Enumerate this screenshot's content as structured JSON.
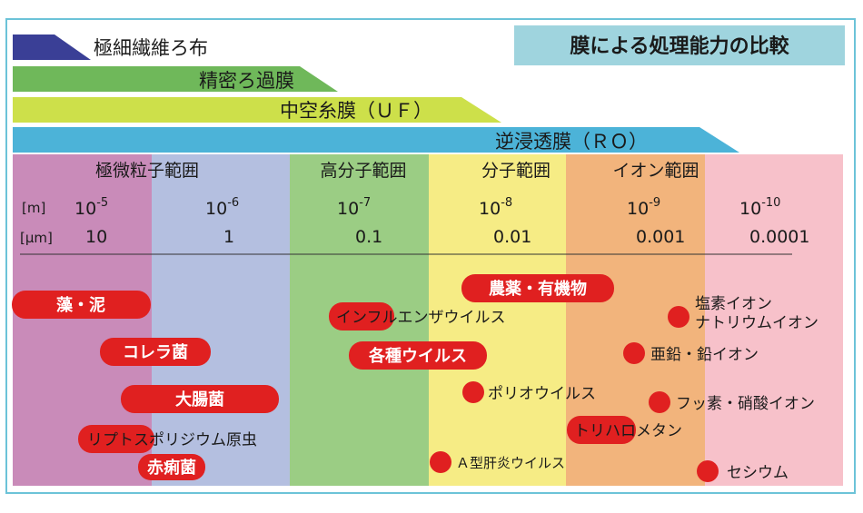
{
  "title": "膜による処理能力の比較",
  "colors": {
    "frame": "#6cc3d8",
    "title_bg": "#9fd4de",
    "marker": "#e02020"
  },
  "membranes": [
    {
      "label": "極細繊維ろ布",
      "color": "#3a3f96"
    },
    {
      "label": "精密ろ過膜",
      "color": "#6fb85a"
    },
    {
      "label": "中空糸膜（ＵＦ）",
      "color": "#cde04a"
    },
    {
      "label": "逆浸透膜（ＲＯ）",
      "color": "#4cb3d8"
    }
  ],
  "ranges": [
    {
      "label": "極微粒子範囲"
    },
    {
      "label": "高分子範囲"
    },
    {
      "label": "分子範囲"
    },
    {
      "label": "イオン範囲"
    }
  ],
  "columns": [
    {
      "color": "#c98bb9"
    },
    {
      "color": "#b4bfe0"
    },
    {
      "color": "#9bcd84"
    },
    {
      "color": "#f6ec85"
    },
    {
      "color": "#f2b47c"
    },
    {
      "color": "#f7c1ca"
    }
  ],
  "units": {
    "m": "[m]",
    "um": "[μm]"
  },
  "scale": [
    {
      "base": "10",
      "exp": "-5",
      "um": "10"
    },
    {
      "base": "10",
      "exp": "-6",
      "um": "1"
    },
    {
      "base": "10",
      "exp": "-7",
      "um": "0.1"
    },
    {
      "base": "10",
      "exp": "-8",
      "um": "0.01"
    },
    {
      "base": "10",
      "exp": "-9",
      "um": "0.001"
    },
    {
      "base": "10",
      "exp": "-10",
      "um": "0.0001"
    }
  ],
  "pill_items": [
    {
      "label": "藻・泥"
    },
    {
      "label": "コレラ菌"
    },
    {
      "label": "大腸菌"
    },
    {
      "label": "リプトスポリジウム原虫"
    },
    {
      "label": "赤痢菌"
    },
    {
      "label": "農薬・有機物"
    },
    {
      "label": "インフルエンザウイルス"
    },
    {
      "label": "各種ウイルス"
    },
    {
      "label": "トリハロメタン"
    }
  ],
  "dot_items": [
    {
      "label": "ポリオウイルス"
    },
    {
      "label": "Ａ型肝炎ウイルス"
    },
    {
      "label": "塩素イオン"
    },
    {
      "label": "ナトリウムイオン"
    },
    {
      "label": "亜鉛・鉛イオン"
    },
    {
      "label": "フッ素・硝酸イオン"
    },
    {
      "label": "セシウム"
    }
  ]
}
